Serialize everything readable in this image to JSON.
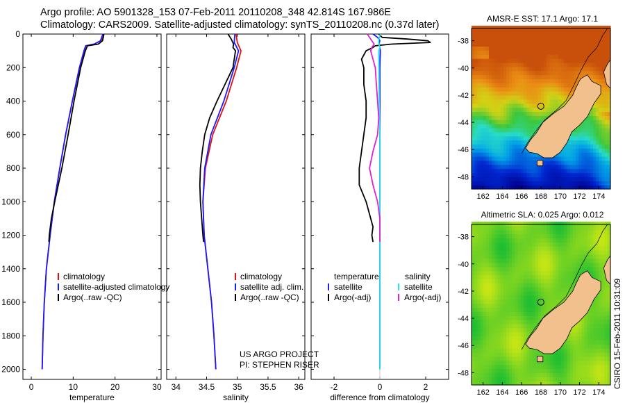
{
  "header": {
    "line1": "Argo profile: AO 5901328_153 07-Feb-2011 20110208_348 42.814S 167.986E",
    "line2": "Climatology: CARS2009. Satellite-adjusted climatology: synTS_20110208.nc (0.37d later)"
  },
  "colors": {
    "red": "#dd1111",
    "blue": "#1a1aff",
    "black": "#000000",
    "cyan": "#22e5ee",
    "magenta": "#e21fd0"
  },
  "chart_data": [
    {
      "id": "temperature",
      "type": "line",
      "xlabel": "temperature",
      "ylabel": "",
      "xlim": [
        -2,
        31
      ],
      "ylim": [
        2060,
        0
      ],
      "xticks": [
        0,
        10,
        20,
        30
      ],
      "yticks": [
        0,
        200,
        400,
        600,
        800,
        1000,
        1200,
        1400,
        1600,
        1800,
        2000
      ],
      "legend": {
        "placement": "lower-right",
        "items": [
          "climatology",
          "satellite-adjusted climatology",
          "Argo(..raw -QC)"
        ]
      },
      "series": [
        {
          "name": "climatology",
          "color": "red",
          "y": [
            0,
            40,
            60,
            70,
            100,
            200,
            400,
            600,
            800,
            1000,
            1200,
            1400,
            1600,
            1800,
            2000
          ],
          "x": [
            17.4,
            16.6,
            15.0,
            13.0,
            12.6,
            11.5,
            9.8,
            8.2,
            6.8,
            5.5,
            4.5,
            3.6,
            3.1,
            2.8,
            2.6
          ]
        },
        {
          "name": "satellite-adjusted climatology",
          "color": "blue",
          "y": [
            0,
            40,
            60,
            70,
            100,
            200,
            400,
            600,
            800,
            1000,
            1200,
            1400,
            1600,
            1800,
            2000
          ],
          "x": [
            17.1,
            16.5,
            15.0,
            13.0,
            12.6,
            11.5,
            9.8,
            8.2,
            6.8,
            5.5,
            4.5,
            3.6,
            3.1,
            2.8,
            2.6
          ]
        },
        {
          "name": "Argo(..raw -QC)",
          "color": "black",
          "y": [
            0,
            20,
            40,
            60,
            70,
            100,
            200,
            400,
            600,
            800,
            1000,
            1100,
            1200,
            1240
          ],
          "x": [
            17.3,
            17.2,
            17.0,
            16.0,
            13.4,
            12.9,
            11.8,
            10.2,
            8.8,
            7.3,
            5.6,
            4.8,
            4.3,
            4.2
          ]
        }
      ]
    },
    {
      "id": "salinity",
      "type": "line",
      "xlabel": "salinity",
      "ylabel": "",
      "xlim": [
        33.85,
        36.1
      ],
      "ylim": [
        2060,
        0
      ],
      "xticks": [
        34,
        34.5,
        35,
        35.5,
        36
      ],
      "xticklabels": [
        "34",
        "34.5",
        "35",
        "35.5",
        "36"
      ],
      "legend": {
        "placement": "lower-right",
        "items": [
          "climatology",
          "satellite adj. clim.",
          "Argo(..raw -QC)"
        ]
      },
      "series": [
        {
          "name": "climatology",
          "color": "red",
          "y": [
            0,
            50,
            100,
            200,
            400,
            600,
            800,
            1000,
            1200,
            1400,
            1600,
            1800,
            2000
          ],
          "x": [
            34.98,
            35.0,
            35.06,
            34.99,
            34.82,
            34.6,
            34.48,
            34.44,
            34.46,
            34.52,
            34.58,
            34.62,
            34.65
          ]
        },
        {
          "name": "satellite adj. clim.",
          "color": "blue",
          "y": [
            0,
            50,
            100,
            200,
            400,
            600,
            800,
            1000,
            1200,
            1400,
            1600,
            1800,
            2000
          ],
          "x": [
            34.96,
            34.95,
            35.02,
            34.95,
            34.78,
            34.57,
            34.47,
            34.44,
            34.46,
            34.52,
            34.58,
            34.62,
            34.65
          ]
        },
        {
          "name": "Argo(..raw -QC)",
          "color": "black",
          "y": [
            0,
            30,
            60,
            80,
            100,
            200,
            300,
            400,
            500,
            600,
            700,
            800,
            900,
            1000,
            1100,
            1200,
            1240
          ],
          "x": [
            34.85,
            34.9,
            34.94,
            34.93,
            34.97,
            34.93,
            34.8,
            34.67,
            34.55,
            34.47,
            34.43,
            34.4,
            34.39,
            34.4,
            34.42,
            34.44,
            34.45
          ]
        }
      ]
    },
    {
      "id": "difference",
      "type": "line",
      "xlabel": "difference from climatology",
      "ylabel": "",
      "xlim": [
        -3,
        3
      ],
      "ylim": [
        2060,
        0
      ],
      "xticks": [
        -2,
        0,
        2
      ],
      "legend": {
        "placement": "lower-center",
        "items": [
          "temperature",
          "satellite",
          "Argo(-adj)",
          "salinity",
          "satellite",
          "Argo(-adj)"
        ]
      },
      "series": [
        {
          "name": "temperature satellite",
          "color": "blue",
          "y": [
            0,
            20,
            40,
            60,
            80,
            100,
            200,
            400,
            1000,
            2000
          ],
          "x": [
            -0.3,
            -0.1,
            0.0,
            -0.05,
            0.0,
            0.02,
            0.0,
            0.0,
            0.0,
            0.0
          ]
        },
        {
          "name": "temperature Argo(-adj)",
          "color": "black",
          "y": [
            0,
            20,
            30,
            40,
            50,
            60,
            70,
            80,
            100,
            150,
            200,
            300,
            400,
            500,
            600,
            700,
            800,
            900,
            1000,
            1100,
            1150,
            1200,
            1240
          ],
          "x": [
            -0.05,
            0.1,
            1.2,
            2.1,
            2.2,
            0.5,
            -0.2,
            -0.3,
            -0.6,
            -0.8,
            -0.7,
            -0.7,
            -0.6,
            -0.6,
            -0.7,
            -0.8,
            -0.9,
            -0.9,
            -0.6,
            -0.4,
            -0.3,
            -0.35,
            -0.3
          ]
        },
        {
          "name": "salinity satellite",
          "color": "cyan",
          "y": [
            0,
            30,
            60,
            80,
            100,
            200,
            400,
            600,
            1000,
            2000
          ],
          "x": [
            0.02,
            -0.05,
            -0.05,
            0.0,
            -0.05,
            -0.04,
            -0.03,
            0.0,
            0.0,
            0.0
          ]
        },
        {
          "name": "salinity Argo(-adj)",
          "color": "magenta",
          "y": [
            0,
            30,
            60,
            80,
            100,
            200,
            300,
            400,
            500,
            600,
            700,
            800,
            900,
            1000,
            1100,
            1200,
            1240
          ],
          "x": [
            -0.55,
            -0.4,
            -0.25,
            -0.35,
            -0.4,
            -0.2,
            -0.15,
            -0.1,
            -0.05,
            -0.1,
            -0.3,
            -0.45,
            -0.3,
            -0.1,
            0.0,
            0.0,
            0.0
          ]
        }
      ]
    },
    {
      "id": "sst-map",
      "type": "heatmap",
      "title": "AMSR-E SST: 17.1 Argo: 17.1",
      "xlim": [
        160.8,
        175.2
      ],
      "ylim": [
        -48.9,
        -37.1
      ],
      "xticks": [
        162,
        164,
        166,
        168,
        170,
        172,
        174
      ],
      "yticks": [
        -38,
        -40,
        -42,
        -44,
        -46,
        -48
      ],
      "float_location": {
        "lon": 167.986,
        "lat": -42.814
      }
    },
    {
      "id": "sla-map",
      "type": "heatmap",
      "title": "Altimetric SLA: 0.025 Argo: 0.012",
      "xlim": [
        160.8,
        175.2
      ],
      "ylim": [
        -48.9,
        -37.1
      ],
      "xticks": [
        162,
        164,
        166,
        168,
        170,
        172,
        174
      ],
      "yticks": [
        -38,
        -40,
        -42,
        -44,
        -46,
        -48
      ],
      "float_location": {
        "lon": 167.986,
        "lat": -42.814
      }
    }
  ],
  "credits": {
    "line1": "US ARGO PROJECT",
    "line2": "PI: STEPHEN RISER"
  },
  "stamp": "CSIRO 15-Feb-2011 10:31:09"
}
